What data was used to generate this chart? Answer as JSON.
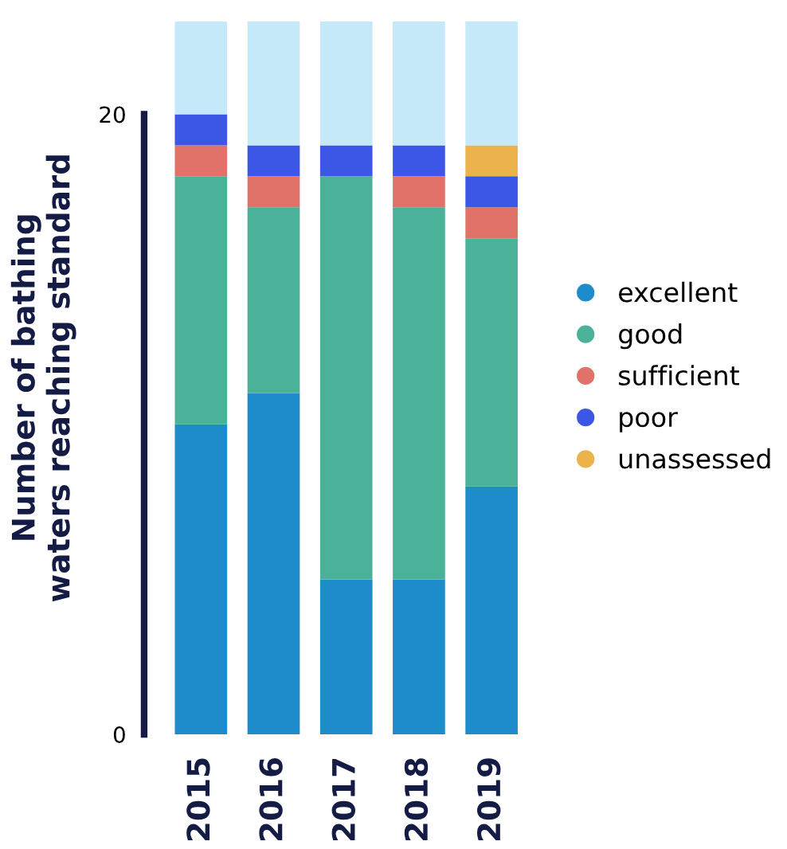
{
  "chart_data": {
    "type": "bar",
    "stacked": true,
    "ylabel": "Number of bathing\nwaters reaching standard",
    "categories": [
      "2015",
      "2016",
      "2017",
      "2018",
      "2019"
    ],
    "series": [
      {
        "name": "excellent",
        "color": "#1e8bcb",
        "values": [
          10,
          11,
          5,
          5,
          8
        ]
      },
      {
        "name": "good",
        "color": "#4bb29a",
        "values": [
          8,
          6,
          13,
          12,
          8
        ]
      },
      {
        "name": "sufficient",
        "color": "#e0726a",
        "values": [
          1,
          1,
          null,
          1,
          1
        ]
      },
      {
        "name": "poor",
        "color": "#3c57e5",
        "values": [
          1,
          1,
          1,
          1,
          1
        ]
      },
      {
        "name": "unassessed",
        "color": "#ecb34c",
        "values": [
          null,
          null,
          null,
          null,
          1
        ]
      },
      {
        "color": "#c6e9f9",
        "values": [
          3,
          4,
          4,
          4,
          4
        ]
      }
    ],
    "ylim": [
      0,
      23
    ],
    "yticks": [
      0,
      20
    ],
    "grid": false,
    "legend": "right"
  }
}
